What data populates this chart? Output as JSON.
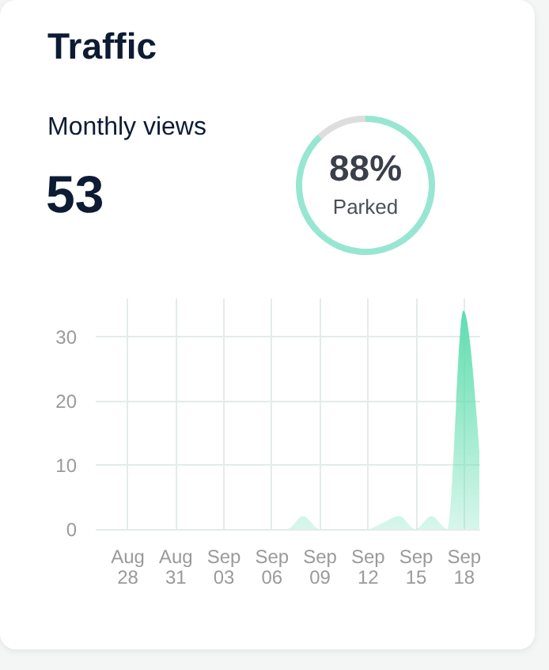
{
  "chart_data": [
    {
      "type": "other",
      "title": "Traffic",
      "annotations": [
        "Monthly views",
        "53"
      ]
    },
    {
      "type": "donut",
      "categories": [
        "Parked",
        null
      ],
      "values": [
        88,
        12
      ],
      "colors": [
        "#97e6d2",
        "#dddddd"
      ],
      "value_labels": [
        "88%",
        null
      ]
    },
    {
      "type": "area",
      "x": [
        "--08-26",
        "--08-27",
        "--08-28",
        "--08-29",
        "--08-30",
        "--08-31",
        "--09-01",
        "--09-02",
        "--09-03",
        "--09-04",
        "--09-05",
        "--09-06",
        "--09-07",
        "--09-08",
        "--09-09",
        "--09-10",
        "--09-11",
        "--09-12",
        "--09-13",
        "--09-14",
        "--09-15",
        "--09-16",
        "--09-17",
        "--09-18",
        "--09-19"
      ],
      "series": [
        {
          "color": "#5fddb0",
          "values": [
            0,
            0,
            0,
            0,
            0,
            0,
            0,
            0,
            0,
            0,
            0,
            0,
            0,
            2,
            0,
            0,
            0,
            0,
            1,
            2,
            0,
            2,
            0,
            34,
            12
          ]
        }
      ],
      "xlim": [
        "--08-26",
        "--09-19"
      ],
      "xticks": [
        {
          "value": "--08-28",
          "label": "Aug 28"
        },
        {
          "value": "--08-31",
          "label": "Aug 31"
        },
        {
          "value": "--09-03",
          "label": "Sep 03"
        },
        {
          "value": "--09-06",
          "label": "Sep 06"
        },
        {
          "value": "--09-09",
          "label": "Sep 09"
        },
        {
          "value": "--09-12",
          "label": "Sep 12"
        },
        {
          "value": "--09-15",
          "label": "Sep 15"
        },
        {
          "value": "--09-18",
          "label": "Sep 18"
        }
      ],
      "ylim": [
        0,
        36
      ],
      "yticks": [
        0,
        10,
        20,
        30
      ],
      "grid": true
    }
  ]
}
